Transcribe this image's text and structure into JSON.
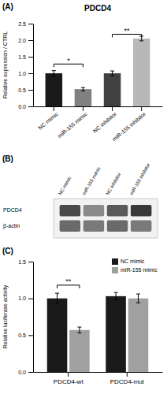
{
  "chart_data": [
    {
      "type": "bar",
      "title": "PDCD4",
      "panel_label": "(A)",
      "categories": [
        "NC mimic",
        "miR-155 mimic",
        "NC inhibitor",
        "miR-155 inhibitor"
      ],
      "values": [
        1.0,
        0.52,
        1.0,
        2.05
      ],
      "errors": [
        0.08,
        0.05,
        0.07,
        0.07
      ],
      "colors": [
        "#1a1a1a",
        "#808080",
        "#404040",
        "#b8b8b8"
      ],
      "y_label": "Relative expression / CTRL",
      "ylim": [
        0,
        2.5
      ],
      "yticks": [
        {
          "value": 0.0,
          "label": "0.0"
        },
        0.5,
        {
          "value": 1.0,
          "label": "1.0"
        },
        1.5,
        {
          "value": 2.0,
          "label": "2.0"
        },
        2.5
      ],
      "annotations": [
        {
          "text": "*",
          "from": "NC mimic",
          "to": "miR-155 mimic",
          "y": 1.28
        },
        {
          "text": "**",
          "from": "NC inhibitor",
          "to": "miR-155 inhibitor",
          "y": 2.18
        }
      ]
    },
    {
      "type": "blot",
      "panel_label": "(B)",
      "categories": [
        "NC mimic",
        "miR-155 mimic",
        "NC inhibitor",
        "miR-155 inhibitor"
      ],
      "series": [
        {
          "name": "PDCD4",
          "colors": [
            "#4a4a4a",
            "#8a8a8a",
            "#5a5a5a",
            "#3a3a3a"
          ]
        },
        {
          "name": "β-actin",
          "colors": [
            "#6a6a6a",
            "#7a7a7a",
            "#6a6a6a",
            "#7a7a7a"
          ]
        }
      ]
    },
    {
      "type": "bar",
      "panel_label": "(C)",
      "categories": [
        "PDCD4-wt",
        "PDCD4-mut"
      ],
      "series": [
        {
          "name": "NC mimic",
          "color": "#1a1a1a",
          "values": [
            1.0,
            1.03
          ],
          "errors": [
            0.07,
            0.05
          ]
        },
        {
          "name": "miR-155 mimic",
          "color": "#a0a0a0",
          "values": [
            0.57,
            1.0
          ],
          "errors": [
            0.04,
            0.06
          ]
        }
      ],
      "y_label": "Relative luciferase activity",
      "ylim": [
        0,
        1.5
      ],
      "yticks": [
        {
          "value": 0.0,
          "label": "0.0"
        },
        0.5,
        {
          "value": 1.0,
          "label": "1.0"
        },
        1.5
      ],
      "legend": "upper right",
      "annotations": [
        {
          "text": "**",
          "category": "PDCD4-wt",
          "from": "NC mimic",
          "to": "miR-155 mimic",
          "y": 1.18
        }
      ]
    }
  ]
}
